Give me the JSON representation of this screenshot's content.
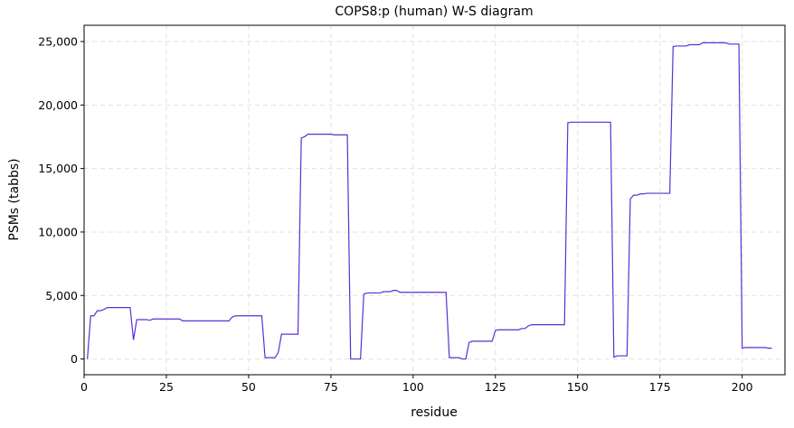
{
  "chart_data": {
    "type": "line",
    "title": "COPS8:p (human) W-S diagram",
    "xlabel": "residue",
    "ylabel": "PSMs (tabbs)",
    "x": [
      1,
      2,
      3,
      4,
      5,
      6,
      7,
      8,
      9,
      10,
      11,
      12,
      13,
      14,
      15,
      16,
      17,
      18,
      19,
      20,
      21,
      22,
      23,
      24,
      25,
      26,
      27,
      28,
      29,
      30,
      31,
      32,
      33,
      34,
      35,
      36,
      37,
      38,
      39,
      40,
      41,
      42,
      43,
      44,
      45,
      46,
      47,
      48,
      49,
      50,
      51,
      52,
      53,
      54,
      55,
      56,
      57,
      58,
      59,
      60,
      61,
      62,
      63,
      64,
      65,
      66,
      67,
      68,
      69,
      70,
      71,
      72,
      73,
      74,
      75,
      76,
      77,
      78,
      79,
      80,
      81,
      82,
      83,
      84,
      85,
      86,
      87,
      88,
      89,
      90,
      91,
      92,
      93,
      94,
      95,
      96,
      97,
      98,
      99,
      100,
      101,
      102,
      103,
      104,
      105,
      106,
      107,
      108,
      109,
      110,
      111,
      112,
      113,
      114,
      115,
      116,
      117,
      118,
      119,
      120,
      121,
      122,
      123,
      124,
      125,
      126,
      127,
      128,
      129,
      130,
      131,
      132,
      133,
      134,
      135,
      136,
      137,
      138,
      139,
      140,
      141,
      142,
      143,
      144,
      145,
      146,
      147,
      148,
      149,
      150,
      151,
      152,
      153,
      154,
      155,
      156,
      157,
      158,
      159,
      160,
      161,
      162,
      163,
      164,
      165,
      166,
      167,
      168,
      169,
      170,
      171,
      172,
      173,
      174,
      175,
      176,
      177,
      178,
      179,
      180,
      181,
      182,
      183,
      184,
      185,
      186,
      187,
      188,
      189,
      190,
      191,
      192,
      193,
      194,
      195,
      196,
      197,
      198,
      199,
      200,
      201,
      202,
      203,
      204,
      205,
      206,
      207,
      208,
      209
    ],
    "series": [
      {
        "name": "COPS8:p",
        "color": "#5b2fd6",
        "values": [
          0,
          3400,
          3400,
          3800,
          3800,
          3900,
          4050,
          4050,
          4050,
          4050,
          4050,
          4050,
          4050,
          4050,
          1500,
          3100,
          3100,
          3100,
          3100,
          3050,
          3150,
          3150,
          3150,
          3150,
          3150,
          3150,
          3150,
          3150,
          3150,
          3000,
          3000,
          3000,
          3000,
          3000,
          3000,
          3000,
          3000,
          3000,
          3000,
          3000,
          3000,
          3000,
          3000,
          3000,
          3300,
          3400,
          3400,
          3400,
          3400,
          3400,
          3400,
          3400,
          3400,
          3400,
          100,
          100,
          100,
          100,
          500,
          1950,
          1950,
          1950,
          1950,
          1950,
          1950,
          17400,
          17500,
          17700,
          17700,
          17700,
          17700,
          17700,
          17700,
          17700,
          17700,
          17650,
          17650,
          17650,
          17650,
          17650,
          0,
          0,
          0,
          0,
          5100,
          5200,
          5200,
          5200,
          5200,
          5200,
          5300,
          5300,
          5300,
          5400,
          5400,
          5250,
          5250,
          5250,
          5250,
          5250,
          5250,
          5250,
          5250,
          5250,
          5250,
          5250,
          5250,
          5250,
          5250,
          5250,
          100,
          100,
          100,
          100,
          0,
          0,
          1300,
          1400,
          1400,
          1400,
          1400,
          1400,
          1400,
          1400,
          2250,
          2300,
          2300,
          2300,
          2300,
          2300,
          2300,
          2300,
          2400,
          2400,
          2600,
          2700,
          2700,
          2700,
          2700,
          2700,
          2700,
          2700,
          2700,
          2700,
          2700,
          2700,
          18600,
          18650,
          18650,
          18650,
          18650,
          18650,
          18650,
          18650,
          18650,
          18650,
          18650,
          18650,
          18650,
          18650,
          150,
          250,
          250,
          250,
          250,
          12600,
          12900,
          12900,
          13000,
          13000,
          13050,
          13050,
          13050,
          13050,
          13050,
          13050,
          13050,
          13050,
          24600,
          24650,
          24650,
          24650,
          24650,
          24750,
          24750,
          24750,
          24750,
          24900,
          24900,
          24900,
          24900,
          24900,
          24900,
          24900,
          24900,
          24800,
          24800,
          24800,
          24800,
          850,
          900,
          900,
          900,
          900,
          900,
          900,
          900,
          850,
          850
        ]
      }
    ],
    "xlim": [
      0,
      213
    ],
    "ylim": [
      -1240,
      26280
    ],
    "xticks": [
      0,
      25,
      50,
      75,
      100,
      125,
      150,
      175,
      200
    ],
    "yticks": [
      0,
      {
        "value": 5000,
        "label": "5,000"
      },
      {
        "value": 10000,
        "label": "10,000"
      },
      {
        "value": 15000,
        "label": "15,000"
      },
      {
        "value": 20000,
        "label": "20,000"
      },
      {
        "value": 25000,
        "label": "25,000"
      }
    ],
    "grid": true
  }
}
